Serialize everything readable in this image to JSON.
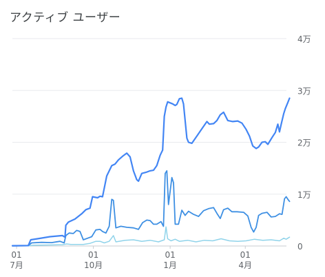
{
  "card": {
    "title": "アクティブ ユーザー"
  },
  "chart_data": {
    "type": "line",
    "title": "アクティブ ユーザー",
    "y_ticks": [
      {
        "value": 0,
        "label": "0"
      },
      {
        "value": 10000,
        "label": "1万"
      },
      {
        "value": 20000,
        "label": "2万"
      },
      {
        "value": 30000,
        "label": "3万"
      },
      {
        "value": 40000,
        "label": "4万"
      }
    ],
    "ylim": [
      0,
      40000
    ],
    "x_ticks": [
      {
        "x": 0,
        "day": "01",
        "month": "7月"
      },
      {
        "x": 92,
        "day": "01",
        "month": "10月"
      },
      {
        "x": 184,
        "day": "01",
        "month": "1月"
      },
      {
        "x": 274,
        "day": "01",
        "month": "4月"
      }
    ],
    "xlim": [
      -5,
      320
    ],
    "x_unit": "days since 7月01",
    "grid": true,
    "series": [
      {
        "color": "#4285f4",
        "width": 2.2,
        "points": [
          [
            -5,
            50
          ],
          [
            14,
            80
          ],
          [
            17,
            1200
          ],
          [
            25,
            1400
          ],
          [
            40,
            1800
          ],
          [
            55,
            2000
          ],
          [
            58,
            1700
          ],
          [
            59,
            4000
          ],
          [
            62,
            4600
          ],
          [
            70,
            5200
          ],
          [
            78,
            6200
          ],
          [
            83,
            7000
          ],
          [
            88,
            7300
          ],
          [
            91,
            9500
          ],
          [
            97,
            9300
          ],
          [
            100,
            9600
          ],
          [
            103,
            9500
          ],
          [
            108,
            13500
          ],
          [
            114,
            15500
          ],
          [
            118,
            15800
          ],
          [
            122,
            16600
          ],
          [
            127,
            17300
          ],
          [
            132,
            17900
          ],
          [
            136,
            17200
          ],
          [
            140,
            14500
          ],
          [
            144,
            12800
          ],
          [
            146,
            12500
          ],
          [
            150,
            14000
          ],
          [
            155,
            14200
          ],
          [
            160,
            14500
          ],
          [
            164,
            14600
          ],
          [
            168,
            15500
          ],
          [
            172,
            17500
          ],
          [
            175,
            18500
          ],
          [
            177,
            25000
          ],
          [
            179,
            26800
          ],
          [
            181,
            27800
          ],
          [
            187,
            27400
          ],
          [
            190,
            27100
          ],
          [
            192,
            27300
          ],
          [
            195,
            28400
          ],
          [
            198,
            28500
          ],
          [
            200,
            27400
          ],
          [
            204,
            20800
          ],
          [
            206,
            20000
          ],
          [
            210,
            19800
          ],
          [
            216,
            21200
          ],
          [
            222,
            22600
          ],
          [
            228,
            24000
          ],
          [
            231,
            23500
          ],
          [
            236,
            23600
          ],
          [
            240,
            24200
          ],
          [
            244,
            25300
          ],
          [
            248,
            25800
          ],
          [
            253,
            24200
          ],
          [
            259,
            24000
          ],
          [
            265,
            24100
          ],
          [
            270,
            23700
          ],
          [
            275,
            22500
          ],
          [
            279,
            21200
          ],
          [
            283,
            19300
          ],
          [
            287,
            18800
          ],
          [
            290,
            19100
          ],
          [
            294,
            20000
          ],
          [
            298,
            20100
          ],
          [
            301,
            19600
          ],
          [
            306,
            20900
          ],
          [
            310,
            21900
          ],
          [
            313,
            23500
          ],
          [
            315,
            22000
          ],
          [
            317,
            23500
          ],
          [
            320,
            25500
          ],
          [
            322,
            26500
          ],
          [
            325,
            27700
          ],
          [
            327,
            28500
          ]
        ]
      },
      {
        "color": "#3d8fe3",
        "width": 1.8,
        "points": [
          [
            -5,
            30
          ],
          [
            14,
            50
          ],
          [
            18,
            600
          ],
          [
            30,
            700
          ],
          [
            42,
            650
          ],
          [
            52,
            900
          ],
          [
            57,
            600
          ],
          [
            59,
            2000
          ],
          [
            63,
            2500
          ],
          [
            68,
            2400
          ],
          [
            72,
            3000
          ],
          [
            76,
            2800
          ],
          [
            80,
            1200
          ],
          [
            90,
            1800
          ],
          [
            95,
            3100
          ],
          [
            100,
            3200
          ],
          [
            103,
            2800
          ],
          [
            107,
            2500
          ],
          [
            111,
            3800
          ],
          [
            114,
            9000
          ],
          [
            116,
            8800
          ],
          [
            119,
            3500
          ],
          [
            125,
            3800
          ],
          [
            132,
            3600
          ],
          [
            140,
            3500
          ],
          [
            146,
            3200
          ],
          [
            151,
            4500
          ],
          [
            156,
            5000
          ],
          [
            160,
            4900
          ],
          [
            164,
            4200
          ],
          [
            168,
            4200
          ],
          [
            173,
            4700
          ],
          [
            176,
            3800
          ],
          [
            178,
            14000
          ],
          [
            180,
            14500
          ],
          [
            182,
            8000
          ],
          [
            186,
            13200
          ],
          [
            188,
            12200
          ],
          [
            190,
            4200
          ],
          [
            194,
            4200
          ],
          [
            198,
            6900
          ],
          [
            202,
            5900
          ],
          [
            206,
            6700
          ],
          [
            212,
            6100
          ],
          [
            218,
            5700
          ],
          [
            224,
            6800
          ],
          [
            230,
            7200
          ],
          [
            236,
            7400
          ],
          [
            240,
            6300
          ],
          [
            244,
            5300
          ],
          [
            248,
            7000
          ],
          [
            253,
            7300
          ],
          [
            258,
            6600
          ],
          [
            264,
            6600
          ],
          [
            272,
            6500
          ],
          [
            277,
            5800
          ],
          [
            281,
            3600
          ],
          [
            284,
            2700
          ],
          [
            287,
            3600
          ],
          [
            290,
            5900
          ],
          [
            294,
            6300
          ],
          [
            300,
            6500
          ],
          [
            305,
            5600
          ],
          [
            310,
            5700
          ],
          [
            315,
            6200
          ],
          [
            318,
            6100
          ],
          [
            321,
            9100
          ],
          [
            323,
            9500
          ],
          [
            325,
            9000
          ],
          [
            327,
            8600
          ]
        ]
      },
      {
        "color": "#8fd3ea",
        "width": 1.5,
        "points": [
          [
            -5,
            30
          ],
          [
            14,
            40
          ],
          [
            20,
            150
          ],
          [
            40,
            200
          ],
          [
            55,
            250
          ],
          [
            60,
            400
          ],
          [
            65,
            300
          ],
          [
            72,
            300
          ],
          [
            80,
            300
          ],
          [
            88,
            500
          ],
          [
            95,
            900
          ],
          [
            100,
            900
          ],
          [
            105,
            600
          ],
          [
            111,
            900
          ],
          [
            116,
            2000
          ],
          [
            119,
            800
          ],
          [
            130,
            1100
          ],
          [
            140,
            1200
          ],
          [
            150,
            900
          ],
          [
            160,
            1100
          ],
          [
            170,
            800
          ],
          [
            177,
            1200
          ],
          [
            179,
            3700
          ],
          [
            181,
            1400
          ],
          [
            185,
            1000
          ],
          [
            190,
            1300
          ],
          [
            195,
            900
          ],
          [
            205,
            1100
          ],
          [
            215,
            800
          ],
          [
            225,
            1100
          ],
          [
            235,
            1000
          ],
          [
            245,
            1400
          ],
          [
            255,
            1000
          ],
          [
            265,
            900
          ],
          [
            275,
            1000
          ],
          [
            285,
            1300
          ],
          [
            295,
            1100
          ],
          [
            305,
            1200
          ],
          [
            315,
            1000
          ],
          [
            320,
            1500
          ],
          [
            323,
            1300
          ],
          [
            327,
            1700
          ]
        ]
      }
    ]
  }
}
